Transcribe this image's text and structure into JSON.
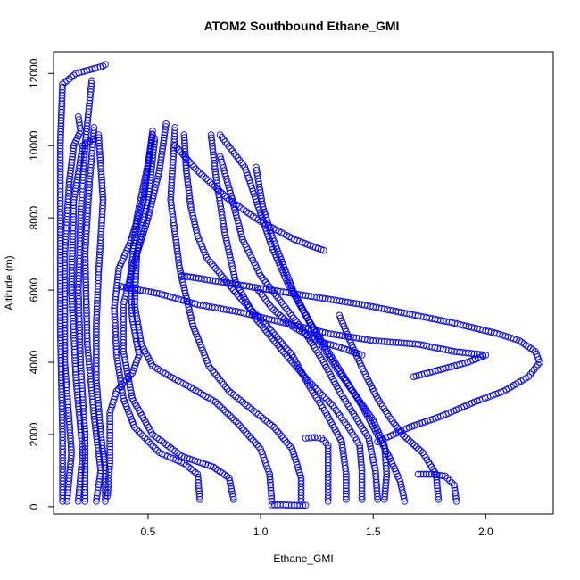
{
  "chart_data": {
    "type": "scatter",
    "title": "ATOM2 Southbound Ethane_GMI",
    "xlabel": "Ethane_GMI",
    "ylabel": "Altitude (m)",
    "xlim": [
      0.08,
      2.3
    ],
    "ylim": [
      -200,
      12600
    ],
    "x_ticks": [
      0.5,
      1.0,
      1.5,
      2.0
    ],
    "x_tick_labels": [
      "0.5",
      "1.0",
      "1.5",
      "2.0"
    ],
    "y_ticks": [
      0,
      2000,
      4000,
      6000,
      8000,
      10000,
      12000
    ],
    "y_tick_labels": [
      "0",
      "2000",
      "4000",
      "6000",
      "8000",
      "10000",
      "12000"
    ],
    "marker": "open-circle",
    "color": "#0000ff",
    "grid": false,
    "legend": "none",
    "series": [
      {
        "x": [
          0.12,
          0.12,
          0.11,
          0.11,
          0.11,
          0.12,
          0.18,
          0.3,
          0.31
        ],
        "y": [
          150,
          2000,
          5000,
          8000,
          10000,
          11700,
          12000,
          12200,
          12250
        ]
      },
      {
        "x": [
          0.14,
          0.16,
          0.13,
          0.13,
          0.15,
          0.17,
          0.2,
          0.19
        ],
        "y": [
          150,
          1500,
          4000,
          7000,
          9000,
          10000,
          10400,
          10800
        ]
      },
      {
        "x": [
          0.19,
          0.21,
          0.18,
          0.16,
          0.17,
          0.21,
          0.26
        ],
        "y": [
          150,
          1500,
          3500,
          6000,
          8500,
          10000,
          10200
        ]
      },
      {
        "x": [
          0.22,
          0.22,
          0.2,
          0.19,
          0.2,
          0.22,
          0.25
        ],
        "y": [
          150,
          2000,
          4000,
          6000,
          8000,
          10000,
          11800
        ]
      },
      {
        "x": [
          0.27,
          0.29,
          0.26,
          0.23,
          0.22,
          0.24,
          0.26
        ],
        "y": [
          150,
          1000,
          2500,
          4500,
          7000,
          9000,
          10500
        ]
      },
      {
        "x": [
          0.31,
          0.31,
          0.29,
          0.27,
          0.27,
          0.28,
          0.3,
          0.28
        ],
        "y": [
          150,
          1000,
          2000,
          3500,
          5000,
          6500,
          8500,
          10300
        ]
      },
      {
        "x": [
          0.32,
          0.33,
          0.33,
          0.36,
          0.43,
          0.46,
          0.43,
          0.42,
          0.45,
          0.5,
          0.52
        ],
        "y": [
          300,
          1200,
          2600,
          3200,
          3700,
          4200,
          5200,
          6300,
          8000,
          9500,
          10300
        ]
      },
      {
        "x": [
          0.73,
          0.72,
          0.66,
          0.55,
          0.44,
          0.39,
          0.36,
          0.35,
          0.37,
          0.42,
          0.48,
          0.52
        ],
        "y": [
          200,
          900,
          1200,
          1500,
          2200,
          3000,
          4200,
          5500,
          6600,
          7300,
          8500,
          10400
        ]
      },
      {
        "x": [
          0.88,
          0.86,
          0.79,
          0.65,
          0.52,
          0.43,
          0.39,
          0.39,
          0.44,
          0.5,
          0.55,
          0.58
        ],
        "y": [
          200,
          800,
          1100,
          1400,
          2000,
          3000,
          4300,
          5600,
          6800,
          8000,
          9300,
          10600
        ]
      },
      {
        "x": [
          1.05,
          1.04,
          1.0,
          0.9,
          0.8,
          0.69,
          0.6,
          0.52,
          0.47,
          0.44,
          0.45,
          0.5,
          0.53
        ],
        "y": [
          150,
          900,
          1600,
          2300,
          2900,
          3300,
          3600,
          3900,
          4500,
          5600,
          7000,
          8500,
          10200
        ]
      },
      {
        "x": [
          1.18,
          1.18,
          1.14,
          1.06,
          0.96,
          0.86,
          0.77,
          0.7,
          0.64,
          0.6,
          0.62
        ],
        "y": [
          150,
          800,
          1600,
          2200,
          2700,
          3200,
          3900,
          5000,
          6600,
          8500,
          10500
        ]
      },
      {
        "x": [
          1.3,
          1.3,
          1.3,
          1.27,
          1.24,
          1.2
        ],
        "y": [
          150,
          900,
          1700,
          1900,
          1920,
          1900
        ]
      },
      {
        "x": [
          1.38,
          1.38,
          1.36,
          1.29,
          1.22,
          1.14,
          1.03,
          0.92,
          0.84,
          0.76,
          0.72,
          0.69,
          0.67,
          0.66
        ],
        "y": [
          200,
          900,
          1800,
          2600,
          3300,
          4200,
          5000,
          5700,
          6300,
          6900,
          7500,
          8300,
          9300,
          10300
        ]
      },
      {
        "x": [
          1.45,
          1.45,
          1.44,
          1.39,
          1.32,
          1.21,
          1.1,
          0.98,
          0.89,
          0.84,
          0.8,
          0.78
        ],
        "y": [
          200,
          1000,
          1700,
          2200,
          2800,
          3500,
          4300,
          5200,
          6200,
          7600,
          9200,
          10300
        ]
      },
      {
        "x": [
          1.52,
          1.51,
          1.48,
          1.42,
          1.35,
          1.28,
          1.2,
          1.1,
          1.0,
          0.92,
          0.87,
          0.82
        ],
        "y": [
          200,
          1000,
          1900,
          2500,
          3200,
          4000,
          4800,
          5600,
          6400,
          7400,
          8600,
          9700
        ]
      },
      {
        "x": [
          1.55,
          1.56,
          1.55,
          1.5,
          1.42,
          1.34,
          1.27,
          1.2,
          1.12,
          1.05,
          0.99,
          0.93,
          0.82
        ],
        "y": [
          200,
          900,
          1700,
          2400,
          3100,
          3800,
          4500,
          5300,
          6200,
          7200,
          8300,
          9400,
          10300
        ]
      },
      {
        "x": [
          1.64,
          1.62,
          1.57,
          1.51,
          1.45,
          1.38,
          1.3,
          1.22,
          1.15,
          1.1,
          1.05,
          1.01,
          0.98
        ],
        "y": [
          150,
          700,
          1400,
          2100,
          2800,
          3500,
          4300,
          5100,
          5900,
          6700,
          7500,
          8300,
          9400
        ]
      },
      {
        "x": [
          1.79,
          1.78,
          1.72,
          1.63,
          1.57,
          1.52,
          1.47,
          1.41,
          1.35
        ],
        "y": [
          200,
          900,
          1500,
          2000,
          2500,
          3000,
          3600,
          4400,
          5300
        ]
      },
      {
        "x": [
          1.87,
          1.86,
          1.82,
          1.76,
          1.7
        ],
        "y": [
          150,
          600,
          850,
          900,
          900
        ]
      },
      {
        "x": [
          0.65,
          0.85,
          1.05,
          1.25,
          1.45,
          1.65,
          1.85,
          2.05,
          2.15,
          2.22,
          2.24,
          2.19,
          2.08,
          1.95,
          1.8,
          1.66,
          1.52
        ],
        "y": [
          6400,
          6200,
          6000,
          5800,
          5600,
          5350,
          5100,
          4800,
          4600,
          4300,
          4000,
          3600,
          3200,
          2900,
          2500,
          2200,
          1800
        ]
      },
      {
        "x": [
          0.38,
          0.55,
          0.72,
          0.9,
          1.1,
          1.3,
          1.5,
          1.7,
          1.86,
          2.0,
          1.92,
          1.8,
          1.68
        ],
        "y": [
          6100,
          5900,
          5600,
          5400,
          5100,
          4800,
          4600,
          4500,
          4300,
          4200,
          4000,
          3800,
          3600
        ]
      },
      {
        "x": [
          0.62,
          0.72,
          0.86,
          1.0,
          1.15,
          1.28
        ],
        "y": [
          10000,
          9300,
          8500,
          7900,
          7400,
          7100
        ]
      },
      {
        "x": [
          0.99,
          1.05,
          1.14,
          1.25,
          1.36,
          1.45
        ],
        "y": [
          6000,
          5500,
          5000,
          4600,
          4400,
          4200
        ]
      },
      {
        "x": [
          1.05,
          1.1,
          1.15,
          1.2
        ],
        "y": [
          50,
          50,
          40,
          40
        ]
      }
    ]
  }
}
